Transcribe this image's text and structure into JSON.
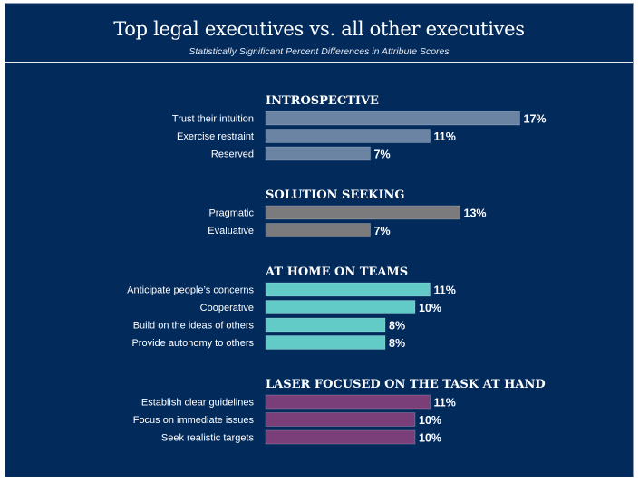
{
  "chart_data": {
    "type": "bar",
    "orientation": "horizontal",
    "title": "Top legal executives vs. all other executives",
    "subtitle": "Statistically Significant Percent Differences in Attribute Scores",
    "xlabel": "",
    "ylabel": "",
    "value_suffix": "%",
    "grid": false,
    "legend": "none",
    "groups": [
      {
        "name": "INTROSPECTIVE",
        "color": "#6c84a3",
        "items": [
          {
            "label": "Trust their intuition",
            "value": 17
          },
          {
            "label": "Exercise restraint",
            "value": 11
          },
          {
            "label": "Reserved",
            "value": 7
          }
        ]
      },
      {
        "name": "SOLUTION SEEKING",
        "color": "#7b7b7d",
        "items": [
          {
            "label": "Pragmatic",
            "value": 13
          },
          {
            "label": "Evaluative",
            "value": 7
          }
        ]
      },
      {
        "name": "AT HOME ON TEAMS",
        "color": "#63cbc7",
        "items": [
          {
            "label": "Anticipate people’s concerns",
            "value": 11
          },
          {
            "label": "Cooperative",
            "value": 10
          },
          {
            "label": "Build on the ideas of others",
            "value": 8
          },
          {
            "label": "Provide autonomy to others",
            "value": 8
          }
        ]
      },
      {
        "name": "LASER FOCUSED ON THE TASK AT HAND",
        "color": "#7a3e78",
        "items": [
          {
            "label": "Establish clear guidelines",
            "value": 11
          },
          {
            "label": "Focus on immediate issues",
            "value": 10
          },
          {
            "label": "Seek realistic targets",
            "value": 10
          }
        ]
      }
    ]
  }
}
